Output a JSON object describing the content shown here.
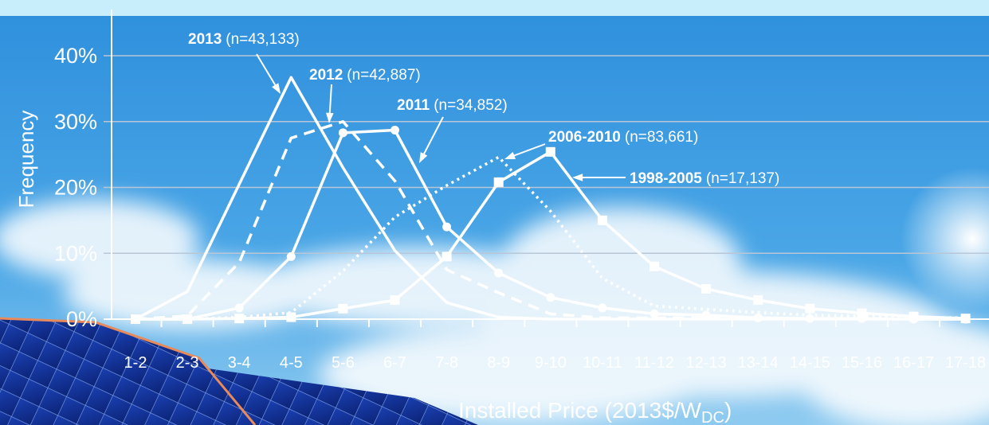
{
  "chart_data": {
    "type": "line",
    "y_label": "Frequency",
    "x_label": "Installed Price (2013$/W",
    "x_label_sub": "DC",
    "x_label_end": ")",
    "categories": [
      "1-2",
      "2-3",
      "3-4",
      "4-5",
      "5-6",
      "6-7",
      "7-8",
      "8-9",
      "9-10",
      "10-11",
      "11-12",
      "12-13",
      "13-14",
      "14-15",
      "15-16",
      "16-17",
      "17-18"
    ],
    "ylim": [
      0,
      40
    ],
    "yticks": [
      {
        "value": 0,
        "label": "0%"
      },
      {
        "value": 10,
        "label": "10%"
      },
      {
        "value": 20,
        "label": "20%"
      },
      {
        "value": 30,
        "label": "30%"
      },
      {
        "value": 40,
        "label": "40%"
      }
    ],
    "grid": true,
    "series": [
      {
        "name": "2013",
        "note": "(n=43,133)",
        "color": "#ffffff",
        "line_style": "solid",
        "marker": "none",
        "values": [
          0,
          4.2,
          20.5,
          36.7,
          23,
          10.4,
          2.5,
          0.3,
          0,
          0,
          0,
          0,
          0,
          0,
          0,
          0,
          0
        ]
      },
      {
        "name": "2012",
        "note": "(n=42,887)",
        "color": "#ffffff",
        "line_style": "dashed",
        "marker": "none",
        "values": [
          0,
          0.5,
          8.6,
          27.5,
          30,
          21,
          7.5,
          4,
          0.8,
          0.2,
          0.2,
          0.2,
          0.1,
          0.1,
          0,
          0,
          0
        ]
      },
      {
        "name": "2011",
        "note": "(n=34,852)",
        "color": "#ffffff",
        "line_style": "solid",
        "marker": "circle",
        "values": [
          0,
          0,
          1.7,
          9.5,
          28.3,
          28.7,
          14,
          7,
          3.3,
          1.7,
          0.8,
          0.6,
          0.2,
          0.1,
          0.1,
          0,
          0
        ]
      },
      {
        "name": "2006-2010",
        "note": "(n=83,661)",
        "color": "#ffffff",
        "line_style": "dotted",
        "marker": "none",
        "values": [
          0,
          0,
          0.3,
          1,
          7.3,
          15.5,
          20.3,
          24.6,
          16.4,
          6.2,
          2,
          1.5,
          1,
          0.6,
          0.5,
          0.3,
          0.2
        ]
      },
      {
        "name": "1998-2005",
        "note": "(n=17,137)",
        "color": "#ffffff",
        "line_style": "solid",
        "marker": "square",
        "values": [
          0,
          0,
          0.1,
          0.3,
          1.6,
          2.9,
          9.5,
          20.8,
          25.4,
          15,
          8,
          4.6,
          2.9,
          1.6,
          0.9,
          0.4,
          0.1
        ]
      }
    ]
  }
}
